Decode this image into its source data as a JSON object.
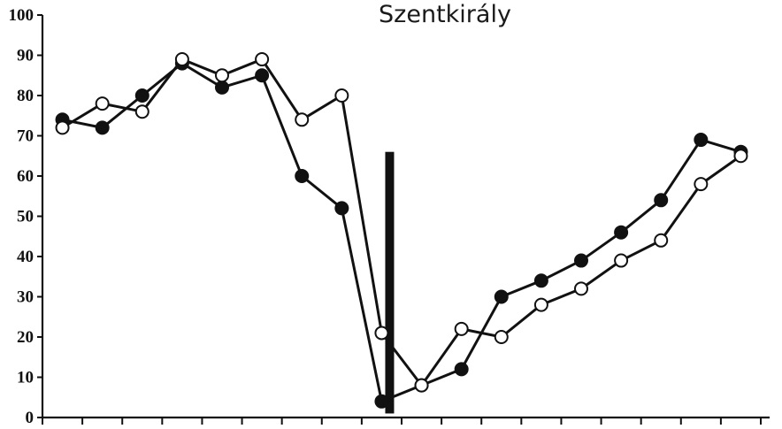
{
  "chart_data": {
    "type": "line",
    "title": "Szentkirály",
    "xlabel": "",
    "ylabel": "",
    "ylim": [
      0,
      100
    ],
    "yticks": [
      0,
      10,
      20,
      30,
      40,
      50,
      60,
      70,
      80,
      90,
      100
    ],
    "x": [
      1,
      2,
      3,
      4,
      5,
      6,
      7,
      8,
      9,
      10,
      11,
      12,
      13,
      14,
      15,
      16,
      17,
      18
    ],
    "xlim": [
      0.5,
      18.5
    ],
    "series": [
      {
        "marker": "filled",
        "values": [
          74,
          72,
          80,
          88,
          82,
          85,
          60,
          52,
          4,
          8,
          12,
          30,
          34,
          39,
          46,
          54,
          69,
          66
        ]
      },
      {
        "marker": "open",
        "values": [
          72,
          78,
          76,
          89,
          85,
          89,
          74,
          80,
          21,
          8,
          22,
          20,
          28,
          32,
          39,
          44,
          58,
          65
        ]
      }
    ],
    "event_marker_x": 9.2,
    "grid": false,
    "legend": "none"
  }
}
